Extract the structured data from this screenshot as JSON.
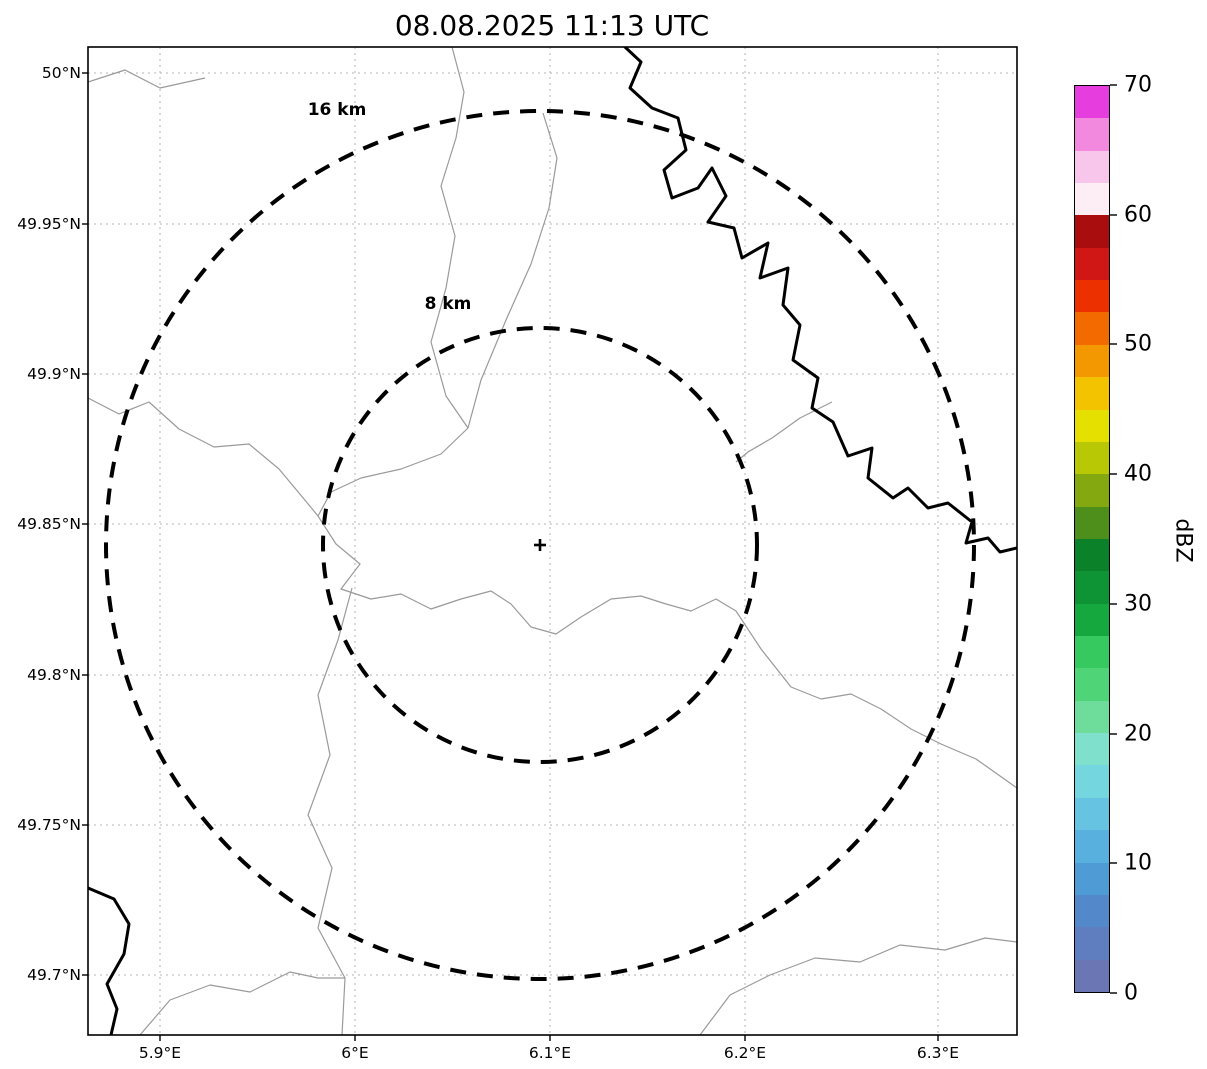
{
  "figure": {
    "title": "08.08.2025 11:13 UTC"
  },
  "map": {
    "rings": [
      {
        "label": "16 km"
      },
      {
        "label": "8 km"
      }
    ],
    "center_marker": "+",
    "style": {
      "ring_color": "#000000",
      "grid_color": "#b5b5b5",
      "border_line_color": "#9a9a9a",
      "river_color": "#000000",
      "background": "#ffffff"
    }
  },
  "axes": {
    "lat_ticks": [
      "50°N",
      "49.95°N",
      "49.9°N",
      "49.85°N",
      "49.8°N",
      "49.75°N",
      "49.7°N"
    ],
    "lon_ticks": [
      "5.9°E",
      "6°E",
      "6.1°E",
      "6.2°E",
      "6.3°E"
    ]
  },
  "colorbar": {
    "label": "dBZ",
    "range": [
      0,
      70
    ],
    "tick_labels": [
      "70",
      "60",
      "50",
      "40",
      "30",
      "20",
      "10",
      "0"
    ],
    "colors_bottom_to_top": [
      "#6b76b4",
      "#5f7ec0",
      "#5389cb",
      "#4f9bd6",
      "#58b0de",
      "#66c4e2",
      "#74d6df",
      "#7fe0cc",
      "#6edd9b",
      "#50d478",
      "#35c95f",
      "#15a83f",
      "#0e9434",
      "#0b812a",
      "#4e8f1c",
      "#84a810",
      "#b9c805",
      "#e6e000",
      "#f4c300",
      "#f49800",
      "#f26a00",
      "#ec3000",
      "#d11616",
      "#a90d0d",
      "#fdeef6",
      "#f8c6ea",
      "#f289df",
      "#e63ede"
    ]
  }
}
